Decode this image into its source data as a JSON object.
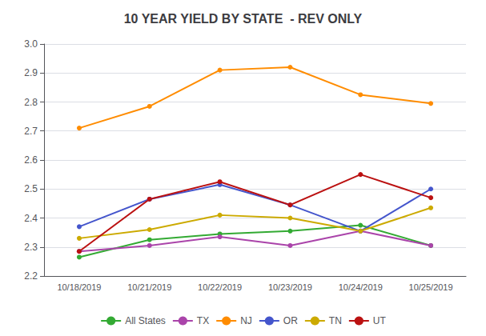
{
  "chart_data": {
    "type": "line",
    "title": "10 YEAR YIELD BY STATE  - REV ONLY",
    "categories": [
      "10/18/2019",
      "10/21/2019",
      "10/22/2019",
      "10/23/2019",
      "10/24/2019",
      "10/25/2019"
    ],
    "series": [
      {
        "name": "All States",
        "color": "#33AA33",
        "marker": "circle",
        "values": [
          2.265,
          2.325,
          2.345,
          2.355,
          2.375,
          2.305
        ]
      },
      {
        "name": "TX",
        "color": "#AA44AA",
        "marker": "circle",
        "values": [
          2.285,
          2.305,
          2.335,
          2.305,
          2.355,
          2.305
        ]
      },
      {
        "name": "NJ",
        "color": "#FF8C00",
        "marker": "circle",
        "values": [
          2.71,
          2.785,
          2.91,
          2.92,
          2.825,
          2.795
        ]
      },
      {
        "name": "OR",
        "color": "#4455CC",
        "marker": "circle",
        "values": [
          2.37,
          2.465,
          2.515,
          2.445,
          2.355,
          2.5
        ]
      },
      {
        "name": "TN",
        "color": "#CCAA00",
        "marker": "circle",
        "values": [
          2.33,
          2.36,
          2.41,
          2.4,
          2.355,
          2.435
        ]
      },
      {
        "name": "UT",
        "color": "#BB1111",
        "marker": "circle",
        "values": [
          2.285,
          2.465,
          2.525,
          2.445,
          2.55,
          2.47
        ]
      }
    ],
    "ylim": [
      2.2,
      3.0
    ],
    "yticks": [
      2.2,
      2.3,
      2.4,
      2.5,
      2.6,
      2.7,
      2.8,
      2.9,
      {
        "value": 3.0,
        "label": "3.0"
      }
    ],
    "grid": true,
    "legend": "bottom"
  }
}
